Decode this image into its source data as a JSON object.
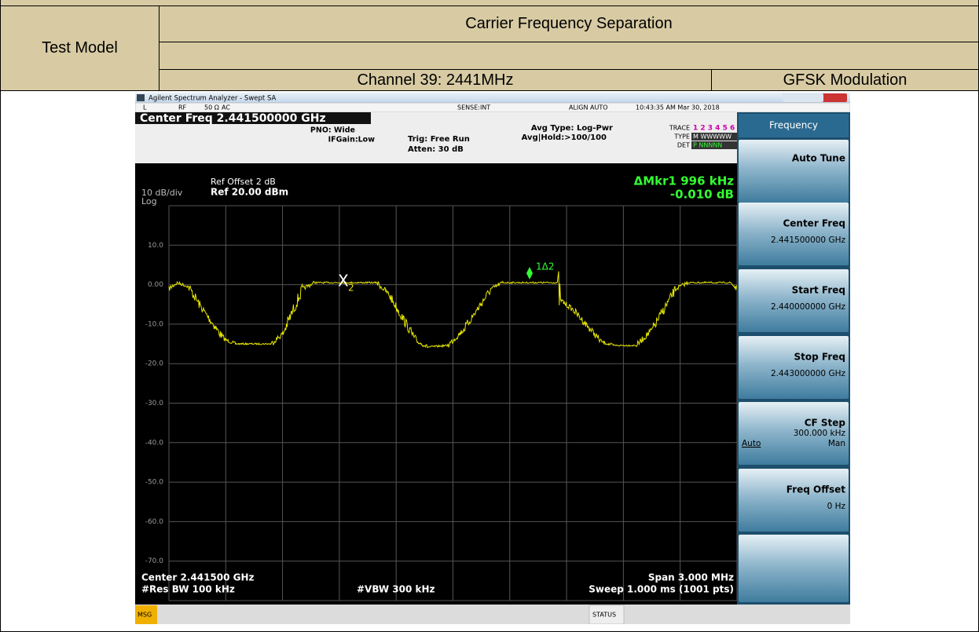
{
  "table": {
    "test_model": "Test Model",
    "title": "Carrier Frequency Separation",
    "channel": "Channel 39: 2441MHz",
    "modulation": "GFSK Modulation"
  },
  "window": {
    "title": "Agilent Spectrum Analyzer - Swept SA"
  },
  "status_bar": [
    "L",
    "RF",
    "50 Ω",
    "AC",
    "SENSE:INT",
    "ALIGN AUTO",
    "10:43:35 AM Mar 30, 2018"
  ],
  "header": {
    "center_freq": "Center Freq 2.441500000 GHz",
    "pno": "PNO: Wide",
    "ifgain": "IFGain:Low",
    "trig": "Trig: Free Run",
    "atten": "Atten: 30 dB",
    "avg_type": "Avg Type: Log-Pwr",
    "avg_hold": "Avg|Hold:>100/100",
    "trace_label": "TRACE",
    "trace_nums": "1 2 3 4 5 6",
    "type_label": "TYPE",
    "type_val": "M WWWWW",
    "det_label": "DET",
    "det_val": "P NNNNN"
  },
  "plot": {
    "scale": "10 dB/div",
    "log": "Log",
    "ref_offset": "Ref Offset 2 dB",
    "ref_level": "Ref 20.00 dBm",
    "marker_readout": [
      "ΔMkr1 996 kHz",
      "-0.010 dB"
    ],
    "marker_label": "1Δ2",
    "x_marker": "X",
    "x_marker_num": "2",
    "y_labels": [
      "10.0",
      "0.00",
      "-10.0",
      "-20.0",
      "-30.0",
      "-40.0",
      "-50.0",
      "-60.0",
      "-70.0"
    ]
  },
  "footer": {
    "center": "Center 2.441500 GHz",
    "res_bw": "#Res BW 100 kHz",
    "vbw": "#VBW 300 kHz",
    "span": "Span 3.000 MHz",
    "sweep": "Sweep  1.000 ms (1001 pts)"
  },
  "softkeys": {
    "menu": "Frequency",
    "keys": [
      {
        "label": "Auto Tune"
      },
      {
        "label": "Center Freq",
        "value": "2.441500000 GHz"
      },
      {
        "label": "Start Freq",
        "value": "2.440000000 GHz"
      },
      {
        "label": "Stop Freq",
        "value": "2.443000000 GHz"
      },
      {
        "label": "CF Step",
        "value": "300.000 kHz",
        "options": [
          "Auto",
          "Man"
        ]
      },
      {
        "label": "Freq Offset",
        "value": "0 Hz"
      }
    ]
  },
  "message_bar": {
    "msg": "MSG",
    "status": "STATUS"
  }
}
